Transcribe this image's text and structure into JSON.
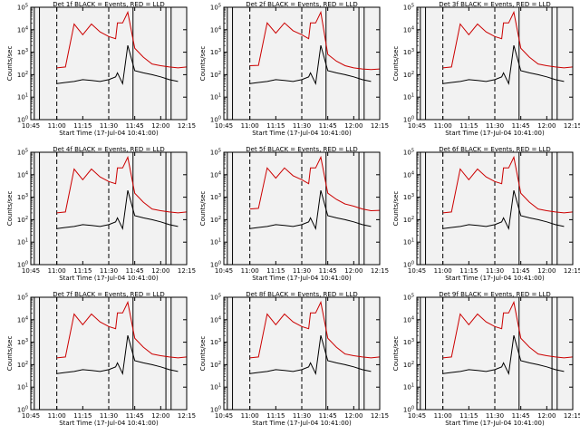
{
  "figure": {
    "background": "#f2f2f2",
    "colors": {
      "events": "#000000",
      "lld": "#cc0000",
      "axis": "#000000"
    }
  },
  "chart_data": [
    {
      "type": "line",
      "title": "Det 1f BLACK = Events, RED = LLD",
      "xlabel": "Start Time (17-Jul-04 10:41:00)",
      "ylabel": "Counts/sec",
      "ylim": [
        1,
        100000
      ],
      "yscale": "log",
      "x_ticks": [
        "10:45",
        "11:00",
        "11:15",
        "11:30",
        "11:45",
        "12:00",
        "12:15"
      ],
      "y_ticks": [
        "10^0",
        "10^1",
        "10^2",
        "10^3",
        "10^4",
        "10^5"
      ],
      "x": [
        "10:45",
        "10:55",
        "11:00",
        "11:05",
        "11:10",
        "11:15",
        "11:20",
        "11:25",
        "11:30",
        "11:34",
        "11:35",
        "11:38",
        "11:41",
        "11:45",
        "11:50",
        "11:55",
        "12:00",
        "12:05",
        "12:10",
        "12:15"
      ],
      "series": [
        {
          "name": "Events",
          "color": "#000000",
          "values": [
            null,
            null,
            40,
            45,
            50,
            60,
            55,
            50,
            60,
            80,
            120,
            40,
            2000,
            150,
            120,
            100,
            80,
            60,
            50,
            null
          ]
        },
        {
          "name": "LLD",
          "color": "#cc0000",
          "values": [
            null,
            null,
            200,
            220,
            18000,
            6000,
            18000,
            8000,
            5000,
            4000,
            20000,
            20000,
            60000,
            1500,
            600,
            300,
            250,
            220,
            200,
            220
          ]
        }
      ],
      "vlines_solid": [
        "10:47",
        "10:50",
        "11:44",
        "12:03",
        "12:06"
      ],
      "vlines_dashed": [
        "11:00",
        "11:30"
      ]
    },
    {
      "type": "line",
      "title": "Det 2f BLACK = Events, RED = LLD",
      "xlabel": "Start Time (17-Jul-04 10:41:00)",
      "ylabel": "Counts/sec",
      "ylim": [
        1,
        100000
      ],
      "yscale": "log",
      "x_ticks": [
        "10:45",
        "11:00",
        "11:15",
        "11:30",
        "11:45",
        "12:00",
        "12:15"
      ],
      "y_ticks": [
        "10^0",
        "10^1",
        "10^2",
        "10^3",
        "10^4",
        "10^5"
      ],
      "x": [
        "10:45",
        "10:55",
        "11:00",
        "11:05",
        "11:10",
        "11:15",
        "11:20",
        "11:25",
        "11:30",
        "11:34",
        "11:35",
        "11:38",
        "11:41",
        "11:45",
        "11:50",
        "11:55",
        "12:00",
        "12:05",
        "12:10",
        "12:15"
      ],
      "series": [
        {
          "name": "Events",
          "color": "#000000",
          "values": [
            null,
            null,
            40,
            45,
            50,
            60,
            55,
            50,
            60,
            80,
            120,
            40,
            2000,
            150,
            120,
            100,
            80,
            60,
            50,
            null
          ]
        },
        {
          "name": "LLD",
          "color": "#cc0000",
          "values": [
            null,
            null,
            250,
            260,
            20000,
            7000,
            20000,
            9000,
            6000,
            4000,
            20000,
            20000,
            60000,
            800,
            400,
            250,
            200,
            180,
            170,
            180
          ]
        }
      ],
      "vlines_solid": [
        "10:47",
        "10:50",
        "11:44",
        "12:03",
        "12:06"
      ],
      "vlines_dashed": [
        "11:00",
        "11:30"
      ]
    },
    {
      "type": "line",
      "title": "Det 3f BLACK = Events, RED = LLD",
      "xlabel": "Start Time (17-Jul-04 10:41:00)",
      "ylabel": "Counts/sec",
      "ylim": [
        1,
        100000
      ],
      "yscale": "log",
      "x_ticks": [
        "10:45",
        "11:00",
        "11:15",
        "11:30",
        "11:45",
        "12:00",
        "12:15"
      ],
      "y_ticks": [
        "10^0",
        "10^1",
        "10^2",
        "10^3",
        "10^4",
        "10^5"
      ],
      "x": [
        "10:45",
        "10:55",
        "11:00",
        "11:05",
        "11:10",
        "11:15",
        "11:20",
        "11:25",
        "11:30",
        "11:34",
        "11:35",
        "11:38",
        "11:41",
        "11:45",
        "11:50",
        "11:55",
        "12:00",
        "12:05",
        "12:10",
        "12:15"
      ],
      "series": [
        {
          "name": "Events",
          "color": "#000000",
          "values": [
            null,
            null,
            40,
            45,
            50,
            60,
            55,
            50,
            60,
            80,
            120,
            40,
            2000,
            150,
            120,
            100,
            80,
            60,
            50,
            null
          ]
        },
        {
          "name": "LLD",
          "color": "#cc0000",
          "values": [
            null,
            null,
            200,
            220,
            18000,
            6000,
            18000,
            8000,
            5000,
            4000,
            20000,
            20000,
            60000,
            1500,
            600,
            300,
            250,
            220,
            200,
            220
          ]
        }
      ],
      "vlines_solid": [
        "10:47",
        "10:50",
        "11:44",
        "12:03",
        "12:06"
      ],
      "vlines_dashed": [
        "11:00",
        "11:30"
      ]
    },
    {
      "type": "line",
      "title": "Det 4f BLACK = Events, RED = LLD",
      "xlabel": "Start Time (17-Jul-04 10:41:00)",
      "ylabel": "Counts/sec",
      "ylim": [
        1,
        100000
      ],
      "yscale": "log",
      "x_ticks": [
        "10:45",
        "11:00",
        "11:15",
        "11:30",
        "11:45",
        "12:00",
        "12:15"
      ],
      "y_ticks": [
        "10^0",
        "10^1",
        "10^2",
        "10^3",
        "10^4",
        "10^5"
      ],
      "x": [
        "10:45",
        "10:55",
        "11:00",
        "11:05",
        "11:10",
        "11:15",
        "11:20",
        "11:25",
        "11:30",
        "11:34",
        "11:35",
        "11:38",
        "11:41",
        "11:45",
        "11:50",
        "11:55",
        "12:00",
        "12:05",
        "12:10",
        "12:15"
      ],
      "series": [
        {
          "name": "Events",
          "color": "#000000",
          "values": [
            null,
            null,
            40,
            45,
            50,
            60,
            55,
            50,
            60,
            80,
            120,
            40,
            2000,
            150,
            120,
            100,
            80,
            60,
            50,
            null
          ]
        },
        {
          "name": "LLD",
          "color": "#cc0000",
          "values": [
            null,
            null,
            200,
            220,
            18000,
            6000,
            18000,
            8000,
            5000,
            4000,
            20000,
            20000,
            60000,
            1500,
            600,
            300,
            250,
            220,
            200,
            220
          ]
        }
      ],
      "vlines_solid": [
        "10:47",
        "10:50",
        "11:44",
        "12:03",
        "12:06"
      ],
      "vlines_dashed": [
        "11:00",
        "11:30"
      ]
    },
    {
      "type": "line",
      "title": "Det 5f BLACK = Events, RED = LLD",
      "xlabel": "Start Time (17-Jul-04 10:41:00)",
      "ylabel": "Counts/sec",
      "ylim": [
        1,
        100000
      ],
      "yscale": "log",
      "x_ticks": [
        "10:45",
        "11:00",
        "11:15",
        "11:30",
        "11:45",
        "12:00",
        "12:15"
      ],
      "y_ticks": [
        "10^0",
        "10^1",
        "10^2",
        "10^3",
        "10^4",
        "10^5"
      ],
      "x": [
        "10:45",
        "10:55",
        "11:00",
        "11:05",
        "11:10",
        "11:15",
        "11:20",
        "11:25",
        "11:30",
        "11:34",
        "11:35",
        "11:38",
        "11:41",
        "11:45",
        "11:50",
        "11:55",
        "12:00",
        "12:05",
        "12:10",
        "12:15"
      ],
      "series": [
        {
          "name": "Events",
          "color": "#000000",
          "values": [
            null,
            null,
            40,
            45,
            50,
            60,
            55,
            50,
            60,
            80,
            120,
            40,
            2000,
            150,
            120,
            100,
            80,
            60,
            50,
            null
          ]
        },
        {
          "name": "LLD",
          "color": "#cc0000",
          "values": [
            null,
            null,
            300,
            320,
            20000,
            7000,
            20000,
            9000,
            6000,
            4000,
            20000,
            20000,
            60000,
            1500,
            800,
            500,
            400,
            300,
            250,
            260
          ]
        }
      ],
      "vlines_solid": [
        "10:47",
        "10:50",
        "11:44",
        "12:03",
        "12:06"
      ],
      "vlines_dashed": [
        "11:00",
        "11:30"
      ]
    },
    {
      "type": "line",
      "title": "Det 6f BLACK = Events, RED = LLD",
      "xlabel": "Start Time (17-Jul-04 10:41:00)",
      "ylabel": "Counts/sec",
      "ylim": [
        1,
        100000
      ],
      "yscale": "log",
      "x_ticks": [
        "10:45",
        "11:00",
        "11:15",
        "11:30",
        "11:45",
        "12:00",
        "12:15"
      ],
      "y_ticks": [
        "10^0",
        "10^1",
        "10^2",
        "10^3",
        "10^4",
        "10^5"
      ],
      "x": [
        "10:45",
        "10:55",
        "11:00",
        "11:05",
        "11:10",
        "11:15",
        "11:20",
        "11:25",
        "11:30",
        "11:34",
        "11:35",
        "11:38",
        "11:41",
        "11:45",
        "11:50",
        "11:55",
        "12:00",
        "12:05",
        "12:10",
        "12:15"
      ],
      "series": [
        {
          "name": "Events",
          "color": "#000000",
          "values": [
            null,
            null,
            40,
            45,
            50,
            60,
            55,
            50,
            60,
            80,
            120,
            40,
            2000,
            150,
            120,
            100,
            80,
            60,
            50,
            null
          ]
        },
        {
          "name": "LLD",
          "color": "#cc0000",
          "values": [
            null,
            null,
            200,
            220,
            18000,
            6000,
            18000,
            8000,
            5000,
            4000,
            20000,
            20000,
            60000,
            1500,
            600,
            300,
            250,
            220,
            200,
            220
          ]
        }
      ],
      "vlines_solid": [
        "10:47",
        "10:50",
        "11:44",
        "12:03",
        "12:06"
      ],
      "vlines_dashed": [
        "11:00",
        "11:30"
      ]
    },
    {
      "type": "line",
      "title": "Det 7f BLACK = Events, RED = LLD",
      "xlabel": "Start Time (17-Jul-04 10:41:00)",
      "ylabel": "Counts/sec",
      "ylim": [
        1,
        100000
      ],
      "yscale": "log",
      "x_ticks": [
        "10:45",
        "11:00",
        "11:15",
        "11:30",
        "11:45",
        "12:00",
        "12:15"
      ],
      "y_ticks": [
        "10^0",
        "10^1",
        "10^2",
        "10^3",
        "10^4",
        "10^5"
      ],
      "x": [
        "10:45",
        "10:55",
        "11:00",
        "11:05",
        "11:10",
        "11:15",
        "11:20",
        "11:25",
        "11:30",
        "11:34",
        "11:35",
        "11:38",
        "11:41",
        "11:45",
        "11:50",
        "11:55",
        "12:00",
        "12:05",
        "12:10",
        "12:15"
      ],
      "series": [
        {
          "name": "Events",
          "color": "#000000",
          "values": [
            null,
            null,
            40,
            45,
            50,
            60,
            55,
            50,
            60,
            80,
            120,
            40,
            2000,
            150,
            120,
            100,
            80,
            60,
            50,
            null
          ]
        },
        {
          "name": "LLD",
          "color": "#cc0000",
          "values": [
            null,
            null,
            200,
            220,
            18000,
            6000,
            18000,
            8000,
            5000,
            4000,
            20000,
            20000,
            60000,
            1500,
            600,
            300,
            250,
            220,
            200,
            220
          ]
        }
      ],
      "vlines_solid": [
        "10:47",
        "10:50",
        "11:44",
        "12:03",
        "12:06"
      ],
      "vlines_dashed": [
        "11:00",
        "11:30"
      ]
    },
    {
      "type": "line",
      "title": "Det 8f BLACK = Events, RED = LLD",
      "xlabel": "Start Time (17-Jul-04 10:41:00)",
      "ylabel": "Counts/sec",
      "ylim": [
        1,
        100000
      ],
      "yscale": "log",
      "x_ticks": [
        "10:45",
        "11:00",
        "11:15",
        "11:30",
        "11:45",
        "12:00",
        "12:15"
      ],
      "y_ticks": [
        "10^0",
        "10^1",
        "10^2",
        "10^3",
        "10^4",
        "10^5"
      ],
      "x": [
        "10:45",
        "10:55",
        "11:00",
        "11:05",
        "11:10",
        "11:15",
        "11:20",
        "11:25",
        "11:30",
        "11:34",
        "11:35",
        "11:38",
        "11:41",
        "11:45",
        "11:50",
        "11:55",
        "12:00",
        "12:05",
        "12:10",
        "12:15"
      ],
      "series": [
        {
          "name": "Events",
          "color": "#000000",
          "values": [
            null,
            null,
            40,
            45,
            50,
            60,
            55,
            50,
            60,
            80,
            120,
            40,
            2000,
            150,
            120,
            100,
            80,
            60,
            50,
            null
          ]
        },
        {
          "name": "LLD",
          "color": "#cc0000",
          "values": [
            null,
            null,
            200,
            220,
            18000,
            6000,
            18000,
            8000,
            5000,
            4000,
            20000,
            20000,
            60000,
            1500,
            600,
            300,
            250,
            220,
            200,
            220
          ]
        }
      ],
      "vlines_solid": [
        "10:47",
        "10:50",
        "11:44",
        "12:03",
        "12:06"
      ],
      "vlines_dashed": [
        "11:00",
        "11:30"
      ]
    },
    {
      "type": "line",
      "title": "Det 9f BLACK = Events, RED = LLD",
      "xlabel": "Start Time (17-Jul-04 10:41:00)",
      "ylabel": "Counts/sec",
      "ylim": [
        1,
        100000
      ],
      "yscale": "log",
      "x_ticks": [
        "10:45",
        "11:00",
        "11:15",
        "11:30",
        "11:45",
        "12:00",
        "12:15"
      ],
      "y_ticks": [
        "10^0",
        "10^1",
        "10^2",
        "10^3",
        "10^4",
        "10^5"
      ],
      "x": [
        "10:45",
        "10:55",
        "11:00",
        "11:05",
        "11:10",
        "11:15",
        "11:20",
        "11:25",
        "11:30",
        "11:34",
        "11:35",
        "11:38",
        "11:41",
        "11:45",
        "11:50",
        "11:55",
        "12:00",
        "12:05",
        "12:10",
        "12:15"
      ],
      "series": [
        {
          "name": "Events",
          "color": "#000000",
          "values": [
            null,
            null,
            40,
            45,
            50,
            60,
            55,
            50,
            60,
            80,
            120,
            40,
            2000,
            150,
            120,
            100,
            80,
            60,
            50,
            null
          ]
        },
        {
          "name": "LLD",
          "color": "#cc0000",
          "values": [
            null,
            null,
            200,
            220,
            18000,
            6000,
            18000,
            8000,
            5000,
            4000,
            20000,
            20000,
            60000,
            1500,
            600,
            300,
            250,
            220,
            200,
            220
          ]
        }
      ],
      "vlines_solid": [
        "10:47",
        "10:50",
        "11:44",
        "12:03",
        "12:06"
      ],
      "vlines_dashed": [
        "11:00",
        "11:30"
      ]
    }
  ]
}
